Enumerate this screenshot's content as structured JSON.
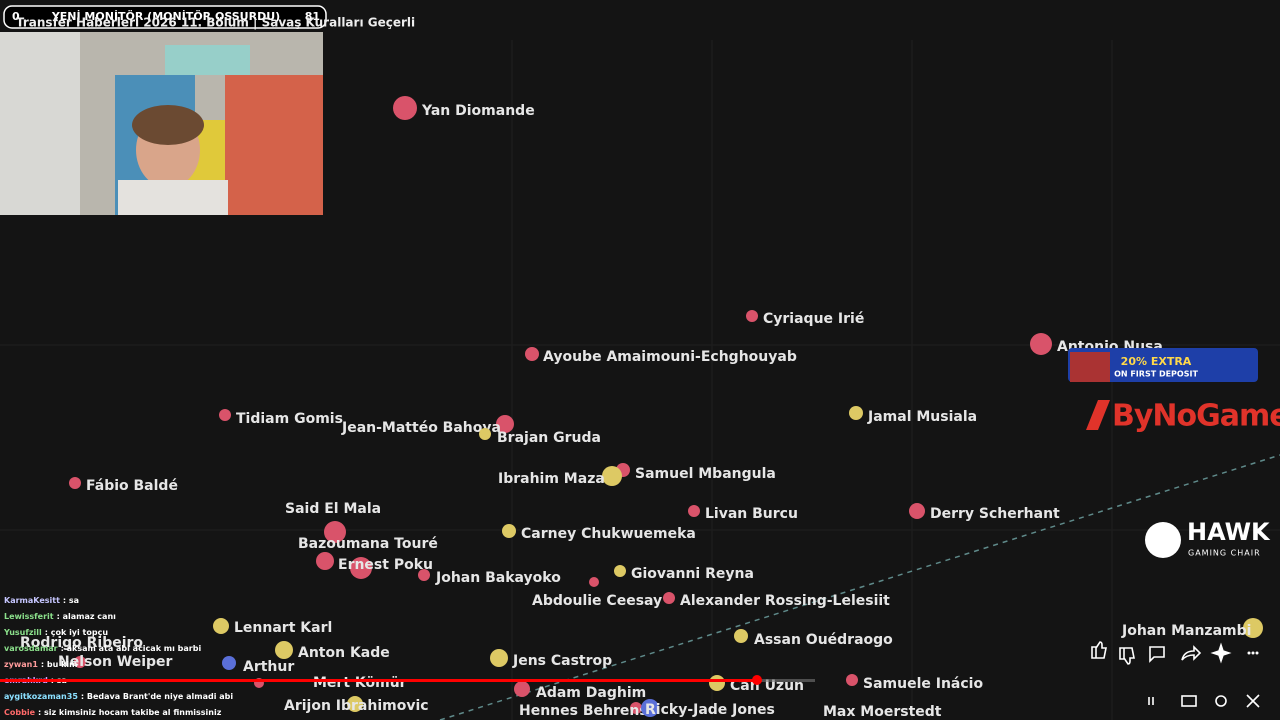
{
  "overlay": {
    "left_count": "0",
    "banner": "YENİ MONİTÖR (MONİTÖR OSSURDU)",
    "right_count": "81",
    "video_title": "Transfer Haberleri 2026 11. Bölüm | Savaş Kuralları Geçerli"
  },
  "players": [
    {
      "label": "Yan Diomande"
    },
    {
      "label": "Cyriaque Irié"
    },
    {
      "label": "Antonio Nusa"
    },
    {
      "label": "Ayoube Amaimouni-Echghouyab"
    },
    {
      "label": "Tidiam Gomis"
    },
    {
      "label": "Jamal Musiala"
    },
    {
      "label": "Jean-Mattéo Bahoya"
    },
    {
      "label": "Brajan Gruda"
    },
    {
      "label": "Fábio Baldé"
    },
    {
      "label": "Samuel Mbangula"
    },
    {
      "label": "Ibrahim Maza"
    },
    {
      "label": "Livan Burcu"
    },
    {
      "label": "Derry Scherhant"
    },
    {
      "label": "Said El Mala"
    },
    {
      "label": "Carney Chukwuemeka"
    },
    {
      "label": "Bazoumana Touré"
    },
    {
      "label": "Ernest Poku"
    },
    {
      "label": "Johan Bakayoko"
    },
    {
      "label": "Giovanni Reyna"
    },
    {
      "label": "Abdoulie Ceesay"
    },
    {
      "label": "Alexander Rossing-Lelesiit"
    },
    {
      "label": "Lennart Karl"
    },
    {
      "label": "Assan Ouédraogo"
    },
    {
      "label": "Johan Manzambi"
    },
    {
      "label": "Anton Kade"
    },
    {
      "label": "Arthur"
    },
    {
      "label": "Jens Castrop"
    },
    {
      "label": "Rodrigo Ribeiro"
    },
    {
      "label": "Nelson Weiper"
    },
    {
      "label": "Mert Kömür"
    },
    {
      "label": "Can Uzun"
    },
    {
      "label": "Samuele Inácio"
    },
    {
      "label": "Adam Daghim"
    },
    {
      "label": "Arijon Ibrahimovic"
    },
    {
      "label": "Hennes Behrens"
    },
    {
      "label": "Ricky-Jade Jones"
    },
    {
      "label": "Max Moerstedt"
    }
  ],
  "chat": [
    {
      "user": "KarmaKesitt",
      "message": ": sa"
    },
    {
      "user": "Lewissferit",
      "message": ": alamaz canı"
    },
    {
      "user": "Yusufzill",
      "message": ": çok iyi topçu"
    },
    {
      "user": "varosdamar",
      "message": ": aksam ata abi acicak mı barbi"
    },
    {
      "user": "zywan1",
      "message": ": bu kim"
    },
    {
      "user": "emrahkrd",
      "message": ": sa"
    },
    {
      "user": "aygitkozaman35",
      "message": ": Bedava Brant'de niye almadi abi"
    },
    {
      "user": "Cobbie",
      "message": ": siz kimsiniz hocam takibe al finmissiniz"
    }
  ],
  "ads": {
    "casino_offer": "20% EXTRA",
    "casino_sub": "ON FIRST DEPOSIT",
    "sponsor": "ByNoGame",
    "brand": "HAWK",
    "brand_sub": "GAMING CHAIR"
  }
}
